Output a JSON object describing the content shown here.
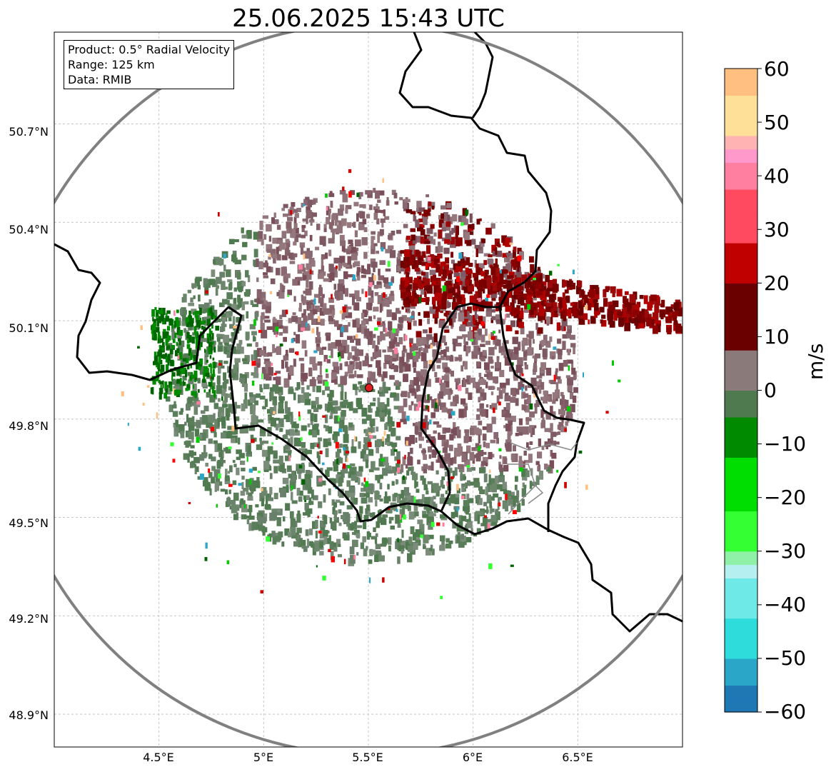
{
  "title": "25.06.2025 15:43 UTC",
  "info_box": {
    "product": "Product: 0.5° Radial Velocity",
    "range": "Range: 125 km",
    "data": "Data: RMIB"
  },
  "map": {
    "lon_range": [
      4.0,
      7.0
    ],
    "lat_range": [
      48.8,
      50.98
    ],
    "radar_site": {
      "lon": 5.505,
      "lat": 49.915
    },
    "lat_ticks": [
      "50.7°N",
      "50.4°N",
      "50.1°N",
      "49.8°N",
      "49.5°N",
      "49.2°N",
      "48.9°N"
    ],
    "lon_ticks": [
      "4.5°E",
      "5°E",
      "5.5°E",
      "6°E",
      "6.5°E"
    ],
    "colors": {
      "range_ring": "#808080",
      "border": "#000000",
      "grid": "#bdbdbd",
      "radar_marker": "#e02020"
    }
  },
  "colorbar": {
    "unit": "m/s",
    "ticks": [
      "60",
      "50",
      "40",
      "30",
      "20",
      "10",
      "0",
      "−10",
      "−20",
      "−30",
      "−40",
      "−50",
      "−60"
    ],
    "stops": [
      {
        "v": -60,
        "c": "#1f77b4"
      },
      {
        "v": -55,
        "c": "#2aa6c9"
      },
      {
        "v": -50,
        "c": "#2fdcdc"
      },
      {
        "v": -42,
        "c": "#6fe8e8"
      },
      {
        "v": -34,
        "c": "#b5efef"
      },
      {
        "v": -33,
        "c": "#8ff0a8"
      },
      {
        "v": -30,
        "c": "#33ff33"
      },
      {
        "v": -22,
        "c": "#00dd00"
      },
      {
        "v": -12,
        "c": "#008a00"
      },
      {
        "v": -6,
        "c": "#006400"
      },
      {
        "v": -5.9,
        "c": "#4f7a4f"
      },
      {
        "v": 0,
        "c": "#7b8c7b"
      },
      {
        "v": 1,
        "c": "#8a7a7a"
      },
      {
        "v": 8,
        "c": "#7a3a45"
      },
      {
        "v": 8.1,
        "c": "#6a0000"
      },
      {
        "v": 20,
        "c": "#c00000"
      },
      {
        "v": 28,
        "c": "#ff0000"
      },
      {
        "v": 28.1,
        "c": "#ff4a5f"
      },
      {
        "v": 38,
        "c": "#ff7fa0"
      },
      {
        "v": 42,
        "c": "#ff99cc"
      },
      {
        "v": 46,
        "c": "#ffb3b3"
      },
      {
        "v": 48,
        "c": "#ffe099"
      },
      {
        "v": 54,
        "c": "#ffbf80"
      },
      {
        "v": 60,
        "c": "#ff9955"
      }
    ]
  }
}
